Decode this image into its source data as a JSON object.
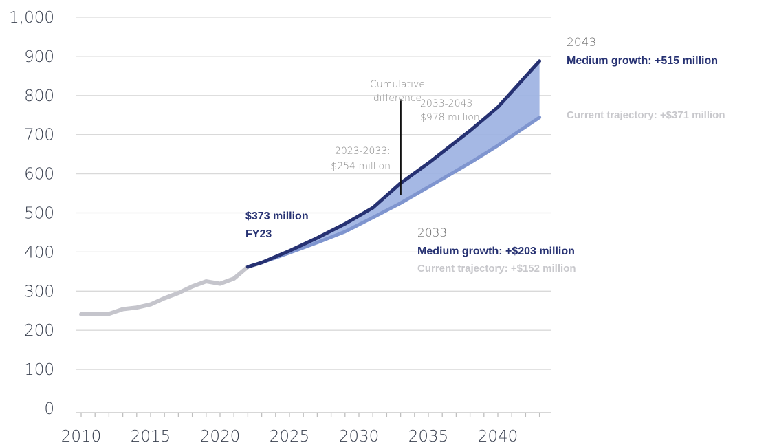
{
  "chart_data": {
    "type": "line",
    "ylim": [
      0,
      1000
    ],
    "xlim": [
      2010,
      2043
    ],
    "y_ticks": [
      "0",
      "100",
      "200",
      "300",
      "400",
      "500",
      "600",
      "700",
      "800",
      "900",
      "1,000"
    ],
    "x_ticks": [
      "2010",
      "2015",
      "2020",
      "2025",
      "2030",
      "2035",
      "2040"
    ],
    "grid": true,
    "colors": {
      "history": "#c5c5cc",
      "medium": "#263172",
      "current": "#7f95cf",
      "band": "#9db2e2"
    },
    "series": [
      {
        "values_x": [
          2010,
          2011,
          2012,
          2013,
          2014,
          2015,
          2016,
          2017,
          2018,
          2019,
          2020,
          2021,
          2022
        ],
        "values": [
          241,
          242,
          242,
          254,
          258,
          266,
          282,
          295,
          312,
          325,
          319,
          332,
          362
        ]
      },
      {
        "values_x": [
          2022,
          2023,
          2025,
          2027,
          2029,
          2031,
          2033,
          2035,
          2038,
          2040,
          2043
        ],
        "values": [
          362,
          373,
          403,
          436,
          472,
          513,
          576,
          627,
          710,
          770,
          888
        ]
      },
      {
        "values_x": [
          2022,
          2023,
          2025,
          2027,
          2029,
          2031,
          2033,
          2035,
          2038,
          2040,
          2043
        ],
        "values": [
          362,
          373,
          398,
          424,
          452,
          488,
          525,
          566,
          628,
          672,
          744
        ]
      }
    ],
    "cumulative_marker": {
      "x": 2033,
      "y_from": 545,
      "y_to": 790
    },
    "annotations": {
      "start_value": "$373 million",
      "start_label": "FY23",
      "cumulative_title_1": "Cumulative",
      "cumulative_title_2": "difference",
      "period_1_label": "2023-2033:",
      "period_1_value": "$254 million",
      "period_2_label": "2033-2043:",
      "period_2_value": "$978 million",
      "year_2043": "2043",
      "medium_2043": "Medium growth: +515 million",
      "current_2043": "Current trajectory: +$371 million",
      "year_2033": "2033",
      "medium_2033": "Medium growth: +$203 million",
      "current_2033": "Current trajectory: +$152 million"
    }
  }
}
